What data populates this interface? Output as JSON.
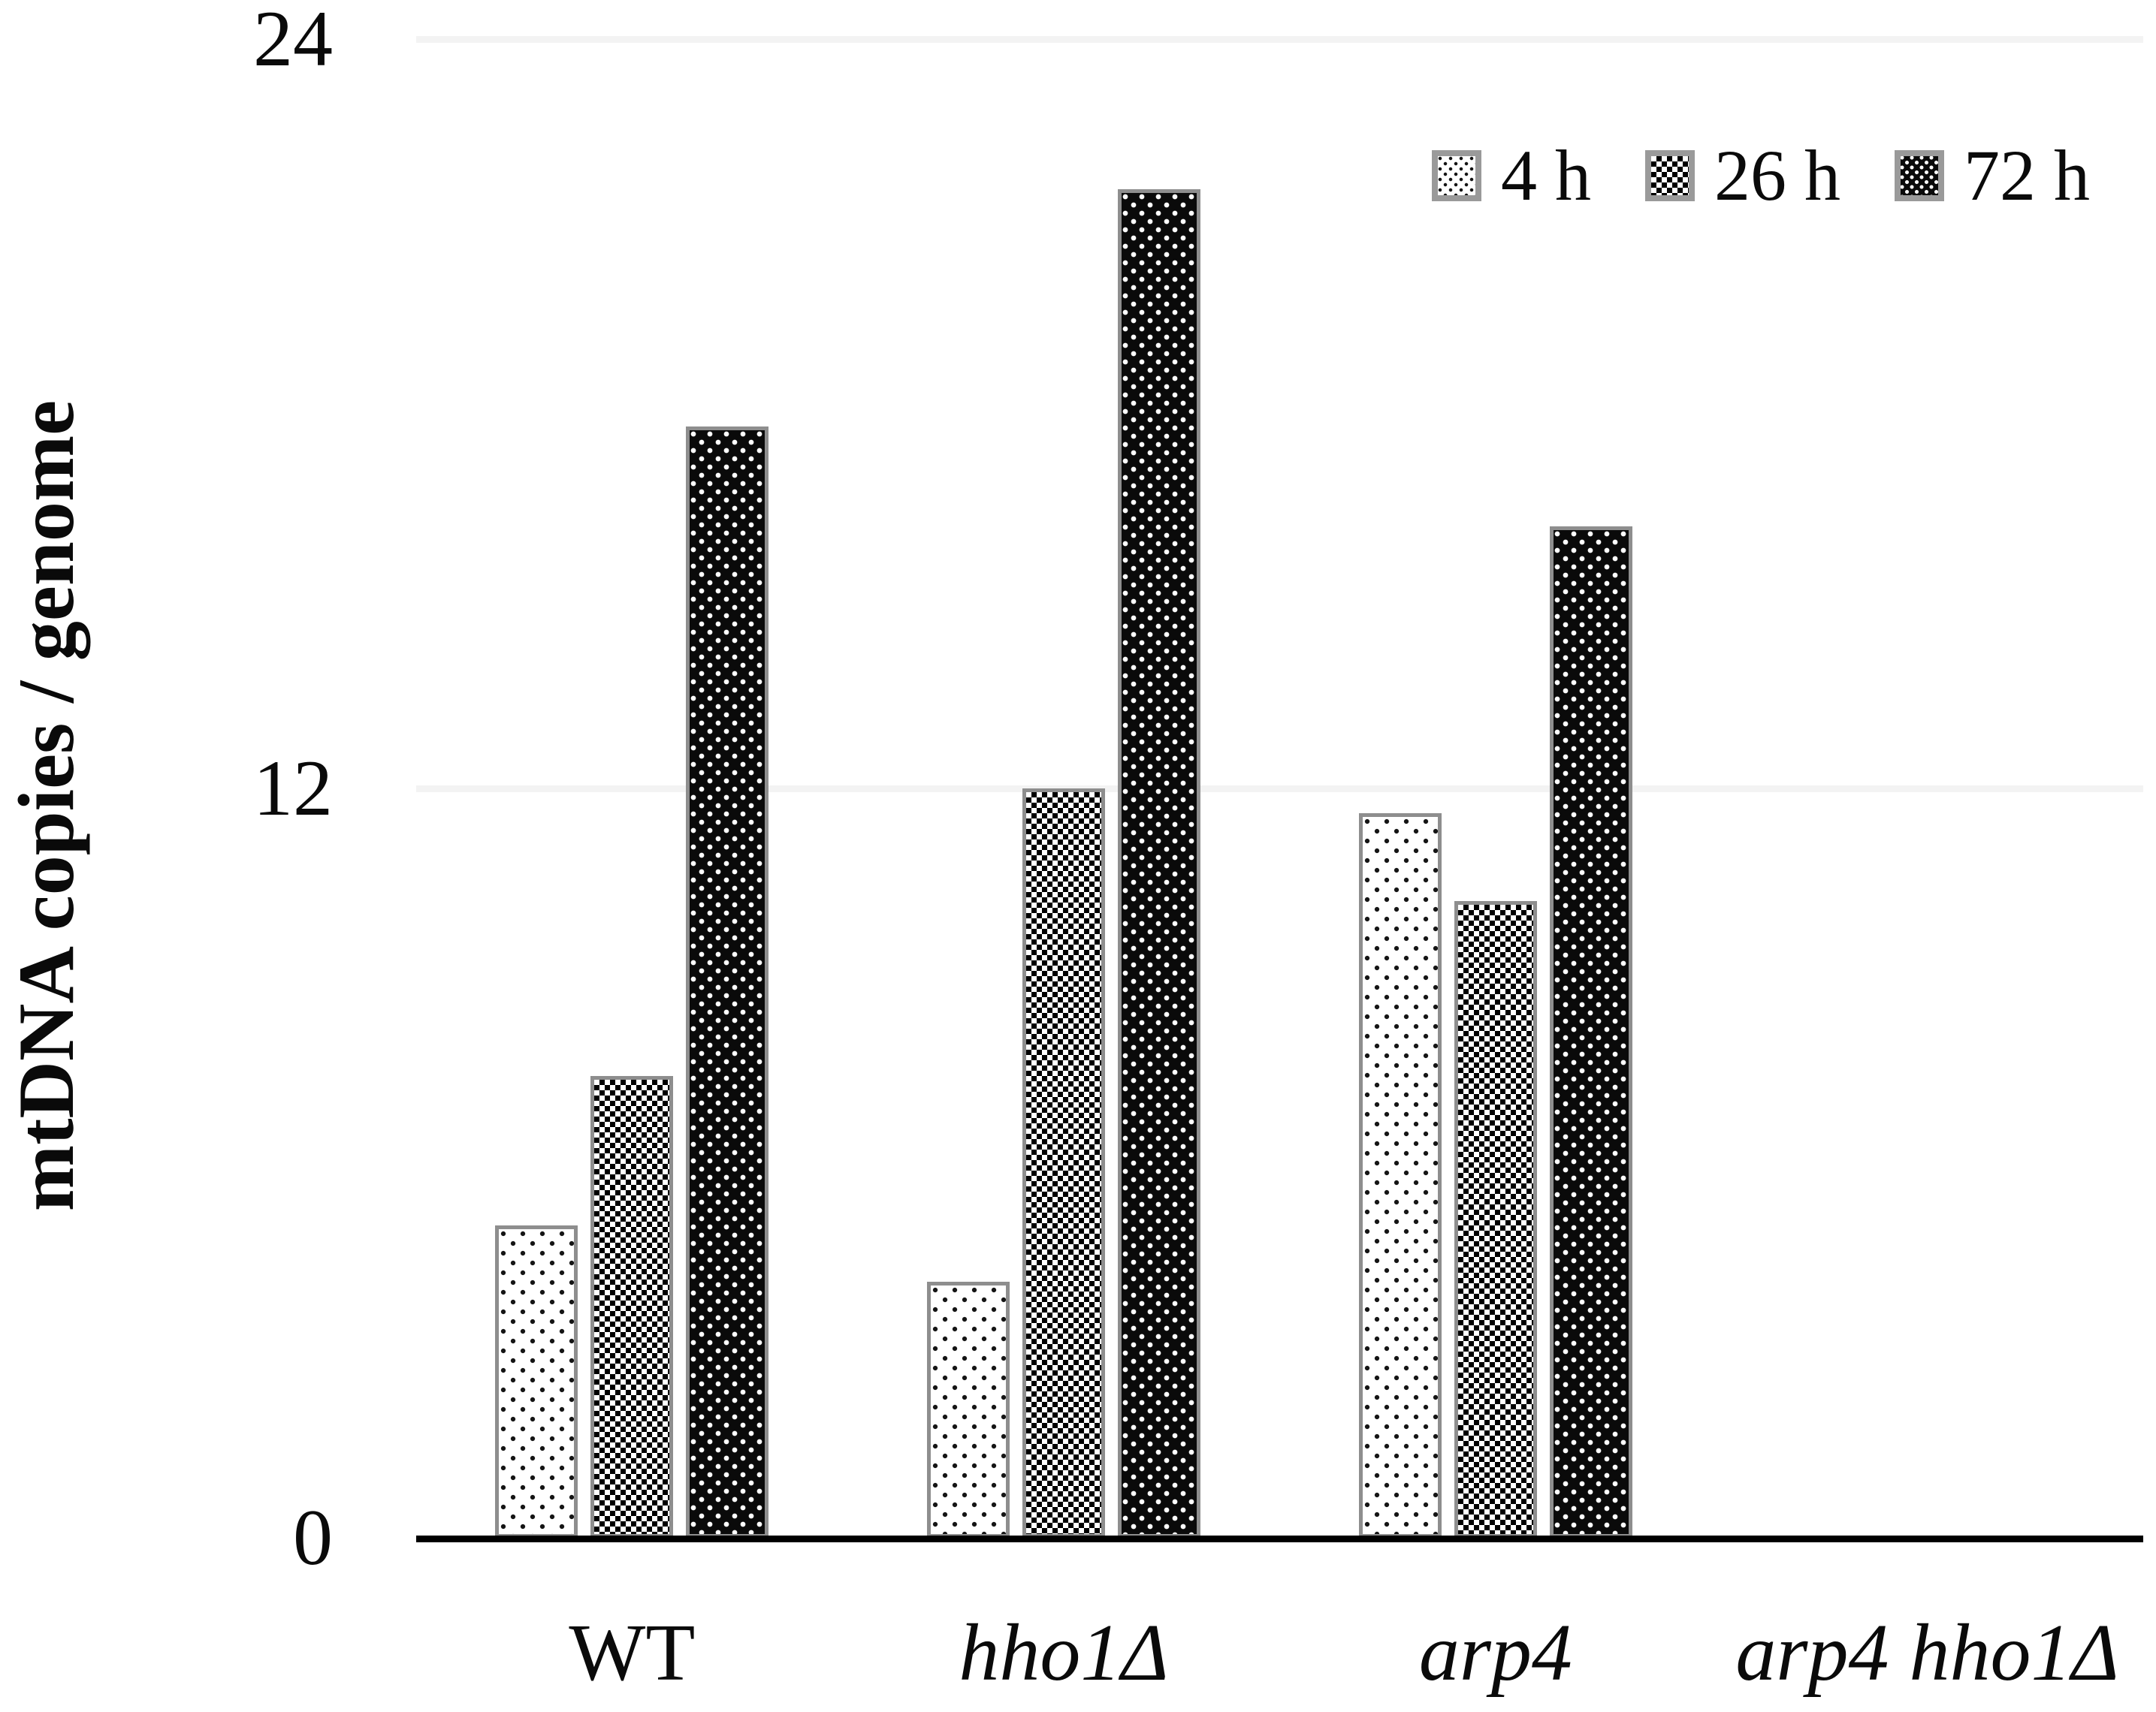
{
  "chart_data": {
    "type": "bar",
    "title": "",
    "ylabel": "mtDNA copies / genome",
    "xlabel": "",
    "ylim": [
      0,
      24
    ],
    "yticks": [
      0,
      12,
      24
    ],
    "gridlines_y": [
      12,
      24
    ],
    "grid": true,
    "legend_position": "top-right",
    "categories": [
      {
        "label": "WT",
        "italic": false
      },
      {
        "label": "hho1Δ",
        "italic": true
      },
      {
        "label": "arp4",
        "italic": true
      },
      {
        "label": "arp4 hho1Δ",
        "italic": true
      }
    ],
    "series": [
      {
        "name": "4 h",
        "pattern": "sparse-black-dots-on-white",
        "values": [
          5.0,
          4.1,
          11.6,
          0
        ]
      },
      {
        "name": "26 h",
        "pattern": "black-white-checkerboard",
        "values": [
          7.4,
          12.0,
          10.2,
          0
        ]
      },
      {
        "name": "72 h",
        "pattern": "white-dots-on-black",
        "values": [
          17.8,
          21.6,
          16.2,
          0
        ]
      }
    ]
  },
  "colors": {
    "background": "#ffffff",
    "axis": "#000000",
    "gridline": "#f3f3f3",
    "bar_border": "#8e8e8e",
    "legend_swatch_border": "#9a9a9a",
    "text": "#0a0a0a"
  }
}
